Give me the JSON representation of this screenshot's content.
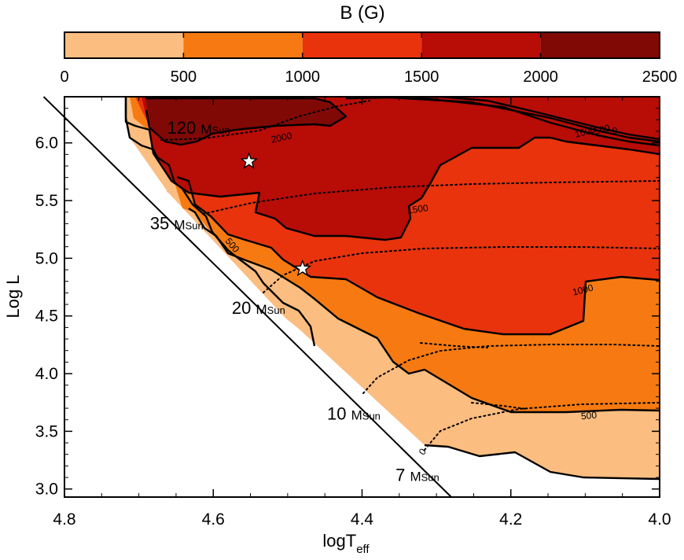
{
  "chart_data": {
    "type": "contour",
    "colorbar": {
      "title": "B (G)",
      "ticks": [
        "0",
        "500",
        "1000",
        "1500",
        "2000",
        "2500"
      ],
      "range": [
        0,
        2500
      ],
      "levels": [
        {
          "from": 0,
          "to": 500,
          "color": "#fcbd80"
        },
        {
          "from": 500,
          "to": 1000,
          "color": "#f67a11"
        },
        {
          "from": 1000,
          "to": 1500,
          "color": "#e8330d"
        },
        {
          "from": 1500,
          "to": 2000,
          "color": "#b80c07"
        },
        {
          "from": 2000,
          "to": 2500,
          "color": "#800906"
        }
      ]
    },
    "xlabel_main": "logT",
    "xlabel_sub": "eff",
    "ylabel": "Log L",
    "xlim": [
      4.8,
      4.0
    ],
    "ylim": [
      2.93,
      6.4
    ],
    "x_ticks": [
      "4.8",
      "4.6",
      "4.4",
      "4.2",
      "4.0"
    ],
    "y_ticks": [
      "3.0",
      "3.5",
      "4.0",
      "4.5",
      "5.0",
      "5.5",
      "6.0"
    ],
    "zams_line": [
      [
        4.828,
        6.4
      ],
      [
        4.28,
        2.93
      ]
    ],
    "mass_labels": [
      {
        "num": "120",
        "unit": "M",
        "sub": "Sun",
        "x": 4.662,
        "y": 6.08
      },
      {
        "num": "35",
        "unit": "M",
        "sub": "Sun",
        "x": 4.685,
        "y": 5.25
      },
      {
        "num": "20",
        "unit": "M",
        "sub": "Sun",
        "x": 4.575,
        "y": 4.52
      },
      {
        "num": "10",
        "unit": "M",
        "sub": "Sun",
        "x": 4.447,
        "y": 3.6
      },
      {
        "num": "7",
        "unit": "M",
        "sub": "Sun",
        "x": 4.355,
        "y": 3.07
      }
    ],
    "contour_labels": [
      {
        "text": "2000",
        "x": 4.508,
        "y": 6.04,
        "angle": -12
      },
      {
        "text": "1500",
        "x": 4.325,
        "y": 5.42,
        "angle": -8
      },
      {
        "text": "1000",
        "x": 4.66,
        "y": 5.5,
        "angle": 58
      },
      {
        "text": "500",
        "x": 4.575,
        "y": 5.11,
        "angle": 50
      },
      {
        "text": "1000",
        "x": 4.103,
        "y": 4.72,
        "angle": -14
      },
      {
        "text": "500",
        "x": 4.095,
        "y": 3.63,
        "angle": -5
      },
      {
        "text": "0",
        "x": 4.318,
        "y": 3.32,
        "angle": -55
      },
      {
        "text": "1500",
        "x": 4.1,
        "y": 6.09,
        "angle": -15
      },
      {
        "text": "500",
        "x": 4.077,
        "y": 6.11,
        "angle": -15
      },
      {
        "text": "0",
        "x": 4.06,
        "y": 6.1,
        "angle": -10
      }
    ],
    "stars": [
      {
        "x": 4.552,
        "y": 5.84
      },
      {
        "x": 4.48,
        "y": 4.91
      }
    ]
  }
}
